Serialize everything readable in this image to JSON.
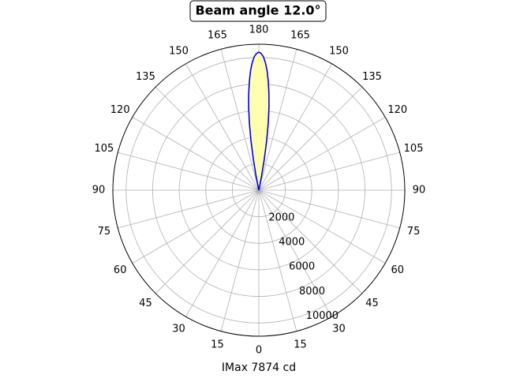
{
  "chart_data": {
    "type": "polar",
    "title": "Beam angle 12.0°",
    "xlabel": "IMax 7874 cd",
    "rlim": [
      0,
      11000
    ],
    "rticks": [
      2000,
      4000,
      6000,
      8000,
      10000
    ],
    "thetaticks": [
      0,
      15,
      30,
      45,
      60,
      75,
      90,
      105,
      120,
      135,
      150,
      165,
      180,
      {
        "value": 195,
        "label": "165"
      },
      {
        "value": 210,
        "label": "150"
      },
      {
        "value": 225,
        "label": "135"
      },
      {
        "value": 240,
        "label": "120"
      },
      {
        "value": 255,
        "label": "105"
      },
      {
        "value": 270,
        "label": "90"
      },
      {
        "value": 285,
        "label": "75"
      },
      {
        "value": 300,
        "label": "60"
      },
      {
        "value": 315,
        "label": "45"
      },
      {
        "value": 330,
        "label": "30"
      },
      {
        "value": 345,
        "label": "15"
      }
    ],
    "grid": true,
    "series": [
      {
        "color": "#0000dd",
        "fill": "#ffffb0",
        "x": [
          168,
          169,
          170,
          171,
          172,
          173,
          174,
          175,
          176,
          177,
          178,
          179,
          180,
          181,
          182,
          183,
          184,
          185,
          186,
          187,
          188,
          189,
          190,
          191,
          192
        ],
        "values": [
          0,
          1100,
          2400,
          3800,
          5100,
          6300,
          7300,
          8200,
          9000,
          9600,
          10050,
          10300,
          10400,
          10300,
          10050,
          9600,
          9000,
          8200,
          7300,
          6300,
          5100,
          3800,
          2400,
          1100,
          0
        ]
      }
    ]
  }
}
